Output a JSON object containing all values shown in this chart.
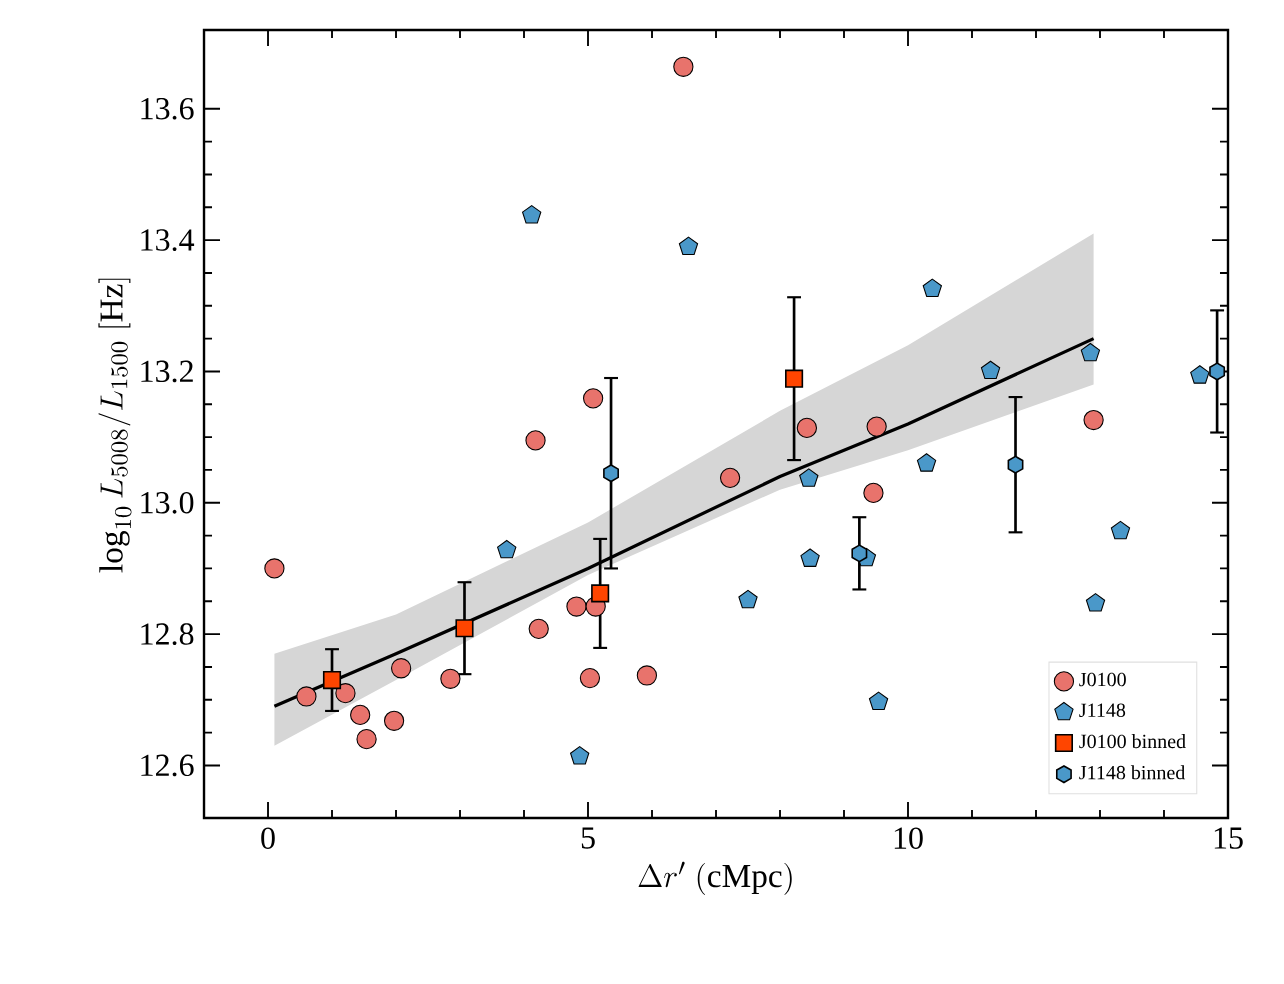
{
  "chart_data": {
    "type": "scatter",
    "xlabel": "\\Delta r'\\ (\\mathrm{cMpc})",
    "ylabel": "\\log_{10} L_{5008}/L_{1500}\\ [\\mathrm{Hz}]",
    "xlim": [
      -1,
      15
    ],
    "ylim": [
      12.52,
      13.72
    ],
    "xticks": [
      0,
      5,
      10,
      15
    ],
    "yticks": [
      12.6,
      12.8,
      {
        "value": 13.0,
        "label": "13.0"
      },
      13.2,
      13.4,
      13.6
    ],
    "legend": "bottom right",
    "series": [
      {
        "name": "J0100",
        "color": "#e8736c",
        "marker": "circle",
        "x": [
          0.1,
          0.6,
          1.21,
          1.44,
          1.54,
          1.97,
          2.08,
          2.85,
          4.18,
          4.23,
          6.49,
          5.08,
          4.82,
          5.12,
          5.03,
          5.92,
          7.22,
          8.42,
          9.46,
          9.51,
          12.9
        ],
        "values": [
          12.9,
          12.705,
          12.71,
          12.677,
          12.64,
          12.668,
          12.748,
          12.732,
          13.095,
          12.808,
          13.664,
          13.159,
          12.842,
          12.842,
          12.733,
          12.737,
          13.038,
          13.114,
          13.015,
          13.116,
          13.126
        ]
      },
      {
        "name": "J1148",
        "color": "#4a98c9",
        "x": [
          4.12,
          3.73,
          6.57,
          7.5,
          8.45,
          8.47,
          9.35,
          9.54,
          4.87,
          10.38,
          10.29,
          11.29,
          12.85,
          13.32,
          12.93,
          14.56
        ],
        "values": [
          13.438,
          12.928,
          13.39,
          12.852,
          13.037,
          12.915,
          12.916,
          12.697,
          12.614,
          13.326,
          13.06,
          13.201,
          13.228,
          12.957,
          12.847,
          13.194
        ]
      },
      {
        "type": "line",
        "color": "#000000",
        "marker": "none",
        "x": [
          0.1,
          2,
          5,
          8,
          10,
          12.9
        ],
        "values": [
          12.69,
          12.77,
          12.9,
          13.04,
          13.12,
          13.25
        ],
        "lower": [
          12.63,
          12.73,
          12.89,
          13.02,
          13.08,
          13.18
        ],
        "upper": [
          12.77,
          12.83,
          12.97,
          13.14,
          13.24,
          13.41
        ]
      },
      {
        "name": "J0100 binned",
        "color": "#ff4500",
        "marker": "square",
        "x": [
          1.0,
          3.07,
          5.19,
          8.22
        ],
        "values": [
          12.73,
          12.809,
          12.862,
          13.189
        ],
        "errors": [
          0.047,
          0.07,
          0.083,
          0.124
        ]
      },
      {
        "name": "J1148 binned",
        "color": "#4a98c9",
        "x": [
          5.36,
          9.24,
          11.68,
          14.83
        ],
        "values": [
          13.045,
          12.923,
          13.058,
          13.2
        ],
        "errors": [
          0.145,
          0.055,
          0.103,
          0.093
        ]
      }
    ]
  }
}
